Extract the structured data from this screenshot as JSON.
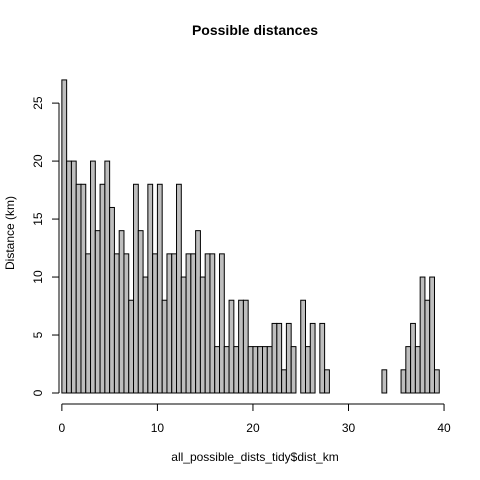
{
  "chart_data": {
    "type": "bar",
    "title": "Possible distances",
    "xlabel": "all_possible_dists_tidy$dist_km",
    "ylabel": "Distance (km)",
    "xlim": [
      0,
      40
    ],
    "ylim": [
      0,
      27
    ],
    "x_ticks": [
      0,
      10,
      20,
      30,
      40
    ],
    "y_ticks": [
      0,
      5,
      10,
      15,
      20,
      25
    ],
    "bin_width": 0.5,
    "bin_start": 0,
    "values": [
      27,
      20,
      20,
      18,
      18,
      12,
      20,
      14,
      18,
      20,
      16,
      12,
      14,
      12,
      8,
      18,
      14,
      10,
      18,
      12,
      18,
      8,
      12,
      12,
      18,
      10,
      12,
      12,
      14,
      10,
      12,
      12,
      4,
      12,
      4,
      8,
      4,
      8,
      8,
      4,
      4,
      4,
      4,
      4,
      6,
      6,
      2,
      6,
      4,
      0,
      8,
      4,
      6,
      0,
      6,
      2,
      0,
      0,
      0,
      0,
      0,
      0,
      0,
      0,
      0,
      0,
      0,
      2,
      0,
      0,
      0,
      2,
      4,
      6,
      4,
      10,
      8,
      10,
      2
    ],
    "grid": false,
    "bar_color": "#bebebe",
    "edge_color": "#000000"
  }
}
